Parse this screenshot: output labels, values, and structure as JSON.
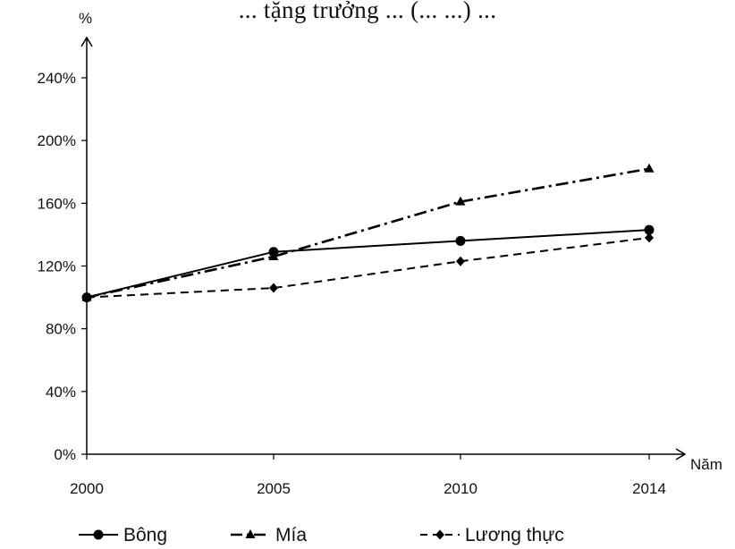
{
  "top_caption": "... tặng trưởng ... (... ...) ...",
  "chart_data": {
    "type": "line",
    "title": "",
    "ylabel": "%",
    "xlabel": "Năm",
    "x": [
      2000,
      2005,
      2010,
      2014
    ],
    "x_tick_labels": [
      "2000",
      "2005",
      "2010",
      "2014"
    ],
    "y_tick_labels": [
      "0%",
      "40%",
      "80%",
      "120%",
      "160%",
      "200%",
      "240%"
    ],
    "ylim": [
      0,
      240
    ],
    "grid": false,
    "legend_position": "bottom",
    "series": [
      {
        "name": "Bông",
        "values": [
          100,
          129,
          136,
          143
        ],
        "marker": "circle",
        "dash": "solid",
        "color": "#000000"
      },
      {
        "name": "Mía",
        "values": [
          100,
          126,
          161,
          182
        ],
        "marker": "triangle",
        "dash": "dash-dot",
        "color": "#000000"
      },
      {
        "name": "Lương thực",
        "values": [
          100,
          106,
          123,
          138
        ],
        "marker": "diamond",
        "dash": "dashed",
        "color": "#000000"
      }
    ]
  }
}
